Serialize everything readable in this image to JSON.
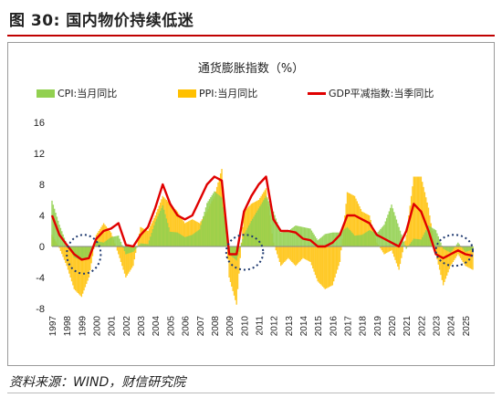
{
  "figure": {
    "number": "图 30:",
    "title": "国内物价持续低迷",
    "source": "资料来源：WIND，财信研究院"
  },
  "chart_data": {
    "type": "bar",
    "title": "通货膨胀指数（%）",
    "legend_placement": "top",
    "grid": false,
    "ylim": [
      -8,
      16
    ],
    "yticks": [
      -8,
      -4,
      0,
      4,
      8,
      12,
      16
    ],
    "xlabels": [
      "1997",
      "1998",
      "1999",
      "2000",
      "2001",
      "2002",
      "2003",
      "2004",
      "2005",
      "2006",
      "2007",
      "2008",
      "2009",
      "2010",
      "2011",
      "2012",
      "2013",
      "2014",
      "2015",
      "2016",
      "2017",
      "2018",
      "2019",
      "2020",
      "2021",
      "2022",
      "2023",
      "2024",
      "2025"
    ],
    "x_range": [
      1997,
      2025.5
    ],
    "series": [
      {
        "name": "CPI:当月同比",
        "kind": "bar",
        "color": "#92d050",
        "points": [
          [
            1997.0,
            5.9
          ],
          [
            1997.5,
            2.8
          ],
          [
            1998.0,
            0.3
          ],
          [
            1998.5,
            -1.4
          ],
          [
            1999.0,
            -1.8
          ],
          [
            1999.5,
            -1.3
          ],
          [
            2000.0,
            0.7
          ],
          [
            2000.5,
            0.5
          ],
          [
            2001.0,
            1.2
          ],
          [
            2001.5,
            1.4
          ],
          [
            2002.0,
            -1.0
          ],
          [
            2002.5,
            -0.7
          ],
          [
            2003.0,
            0.4
          ],
          [
            2003.5,
            0.3
          ],
          [
            2004.0,
            3.2
          ],
          [
            2004.5,
            5.3
          ],
          [
            2005.0,
            1.9
          ],
          [
            2005.5,
            1.8
          ],
          [
            2006.0,
            1.2
          ],
          [
            2006.5,
            1.5
          ],
          [
            2007.0,
            2.2
          ],
          [
            2007.5,
            5.6
          ],
          [
            2008.0,
            7.1
          ],
          [
            2008.5,
            6.3
          ],
          [
            2009.0,
            -1.0
          ],
          [
            2009.5,
            -1.8
          ],
          [
            2010.0,
            1.5
          ],
          [
            2010.5,
            3.3
          ],
          [
            2011.0,
            4.9
          ],
          [
            2011.5,
            6.5
          ],
          [
            2012.0,
            4.5
          ],
          [
            2012.5,
            1.8
          ],
          [
            2013.0,
            2.0
          ],
          [
            2013.5,
            2.7
          ],
          [
            2014.0,
            2.5
          ],
          [
            2014.5,
            2.3
          ],
          [
            2015.0,
            0.8
          ],
          [
            2015.5,
            1.6
          ],
          [
            2016.0,
            1.8
          ],
          [
            2016.5,
            1.8
          ],
          [
            2017.0,
            2.5
          ],
          [
            2017.5,
            1.4
          ],
          [
            2018.0,
            1.5
          ],
          [
            2018.5,
            2.1
          ],
          [
            2019.0,
            1.7
          ],
          [
            2019.5,
            2.8
          ],
          [
            2020.0,
            5.4
          ],
          [
            2020.5,
            2.5
          ],
          [
            2021.0,
            -0.3
          ],
          [
            2021.5,
            1.0
          ],
          [
            2022.0,
            0.9
          ],
          [
            2022.5,
            2.7
          ],
          [
            2023.0,
            2.1
          ],
          [
            2023.5,
            -0.3
          ],
          [
            2024.0,
            -0.8
          ],
          [
            2024.5,
            0.5
          ],
          [
            2025.0,
            -0.7
          ],
          [
            2025.5,
            -0.4
          ]
        ]
      },
      {
        "name": "PPI:当月同比",
        "kind": "bar",
        "color": "#ffc000",
        "points": [
          [
            1997.0,
            1.5
          ],
          [
            1997.5,
            -0.2
          ],
          [
            1998.0,
            -2.5
          ],
          [
            1998.5,
            -5.5
          ],
          [
            1999.0,
            -6.5
          ],
          [
            1999.5,
            -4.0
          ],
          [
            2000.0,
            1.5
          ],
          [
            2000.5,
            3.0
          ],
          [
            2001.0,
            1.8
          ],
          [
            2001.5,
            -1.0
          ],
          [
            2002.0,
            -4.0
          ],
          [
            2002.5,
            -2.5
          ],
          [
            2003.0,
            2.5
          ],
          [
            2003.5,
            2.0
          ],
          [
            2004.0,
            4.0
          ],
          [
            2004.5,
            6.5
          ],
          [
            2005.0,
            5.5
          ],
          [
            2005.5,
            4.5
          ],
          [
            2006.0,
            3.0
          ],
          [
            2006.5,
            3.5
          ],
          [
            2007.0,
            3.0
          ],
          [
            2007.5,
            4.5
          ],
          [
            2008.0,
            6.5
          ],
          [
            2008.5,
            10.0
          ],
          [
            2009.0,
            -4.0
          ],
          [
            2009.5,
            -7.5
          ],
          [
            2010.0,
            4.5
          ],
          [
            2010.5,
            5.5
          ],
          [
            2011.0,
            6.0
          ],
          [
            2011.5,
            7.5
          ],
          [
            2012.0,
            0.5
          ],
          [
            2012.5,
            -2.5
          ],
          [
            2013.0,
            -1.5
          ],
          [
            2013.5,
            -2.5
          ],
          [
            2014.0,
            -1.5
          ],
          [
            2014.5,
            -2.0
          ],
          [
            2015.0,
            -4.5
          ],
          [
            2015.5,
            -5.5
          ],
          [
            2016.0,
            -5.0
          ],
          [
            2016.5,
            -2.0
          ],
          [
            2017.0,
            7.0
          ],
          [
            2017.5,
            6.5
          ],
          [
            2018.0,
            4.5
          ],
          [
            2018.5,
            4.0
          ],
          [
            2019.0,
            0.5
          ],
          [
            2019.5,
            -1.0
          ],
          [
            2020.0,
            -0.5
          ],
          [
            2020.5,
            -3.0
          ],
          [
            2021.0,
            1.5
          ],
          [
            2021.5,
            9.0
          ],
          [
            2022.0,
            9.0
          ],
          [
            2022.5,
            5.0
          ],
          [
            2023.0,
            -1.0
          ],
          [
            2023.5,
            -5.0
          ],
          [
            2024.0,
            -2.5
          ],
          [
            2024.5,
            -1.0
          ],
          [
            2025.0,
            -2.5
          ],
          [
            2025.5,
            -3.0
          ]
        ]
      },
      {
        "name": "GDP平减指数:当季同比",
        "kind": "line",
        "color": "#e00000",
        "points": [
          [
            1997.0,
            4.0
          ],
          [
            1997.5,
            1.5
          ],
          [
            1998.0,
            0.2
          ],
          [
            1998.5,
            -1.0
          ],
          [
            1999.0,
            -1.7
          ],
          [
            1999.5,
            -1.5
          ],
          [
            2000.0,
            1.0
          ],
          [
            2000.5,
            2.0
          ],
          [
            2001.0,
            2.3
          ],
          [
            2001.5,
            3.0
          ],
          [
            2002.0,
            0.2
          ],
          [
            2002.5,
            0.0
          ],
          [
            2003.0,
            1.5
          ],
          [
            2003.5,
            2.5
          ],
          [
            2004.0,
            5.0
          ],
          [
            2004.5,
            8.0
          ],
          [
            2005.0,
            5.5
          ],
          [
            2005.5,
            4.0
          ],
          [
            2006.0,
            3.5
          ],
          [
            2006.5,
            4.0
          ],
          [
            2007.0,
            6.0
          ],
          [
            2007.5,
            8.0
          ],
          [
            2008.0,
            9.0
          ],
          [
            2008.5,
            8.5
          ],
          [
            2009.0,
            -1.0
          ],
          [
            2009.5,
            -1.0
          ],
          [
            2010.0,
            4.5
          ],
          [
            2010.5,
            6.5
          ],
          [
            2011.0,
            8.0
          ],
          [
            2011.5,
            9.0
          ],
          [
            2012.0,
            3.5
          ],
          [
            2012.5,
            2.0
          ],
          [
            2013.0,
            2.0
          ],
          [
            2013.5,
            1.8
          ],
          [
            2014.0,
            1.0
          ],
          [
            2014.5,
            0.8
          ],
          [
            2015.0,
            0.0
          ],
          [
            2015.5,
            0.0
          ],
          [
            2016.0,
            0.5
          ],
          [
            2016.5,
            1.5
          ],
          [
            2017.0,
            4.0
          ],
          [
            2017.5,
            4.0
          ],
          [
            2018.0,
            3.5
          ],
          [
            2018.5,
            3.0
          ],
          [
            2019.0,
            1.5
          ],
          [
            2019.5,
            1.0
          ],
          [
            2020.0,
            0.5
          ],
          [
            2020.5,
            0.0
          ],
          [
            2021.0,
            2.0
          ],
          [
            2021.5,
            5.5
          ],
          [
            2022.0,
            4.5
          ],
          [
            2022.5,
            2.0
          ],
          [
            2023.0,
            -1.0
          ],
          [
            2023.5,
            -1.5
          ],
          [
            2024.0,
            -1.0
          ],
          [
            2024.5,
            -0.5
          ],
          [
            2025.0,
            -1.0
          ],
          [
            2025.5,
            -1.2
          ]
        ]
      }
    ],
    "annotations": [
      {
        "kind": "dotted-ellipse",
        "x": [
          1998.0,
          2000.3
        ],
        "y": [
          -3.5,
          1.5
        ]
      },
      {
        "kind": "dotted-ellipse",
        "x": [
          2008.8,
          2011.3
        ],
        "y": [
          -3.0,
          1.5
        ]
      },
      {
        "kind": "dotted-ellipse",
        "x": [
          2023.0,
          2025.5
        ],
        "y": [
          -2.5,
          1.5
        ]
      }
    ]
  }
}
